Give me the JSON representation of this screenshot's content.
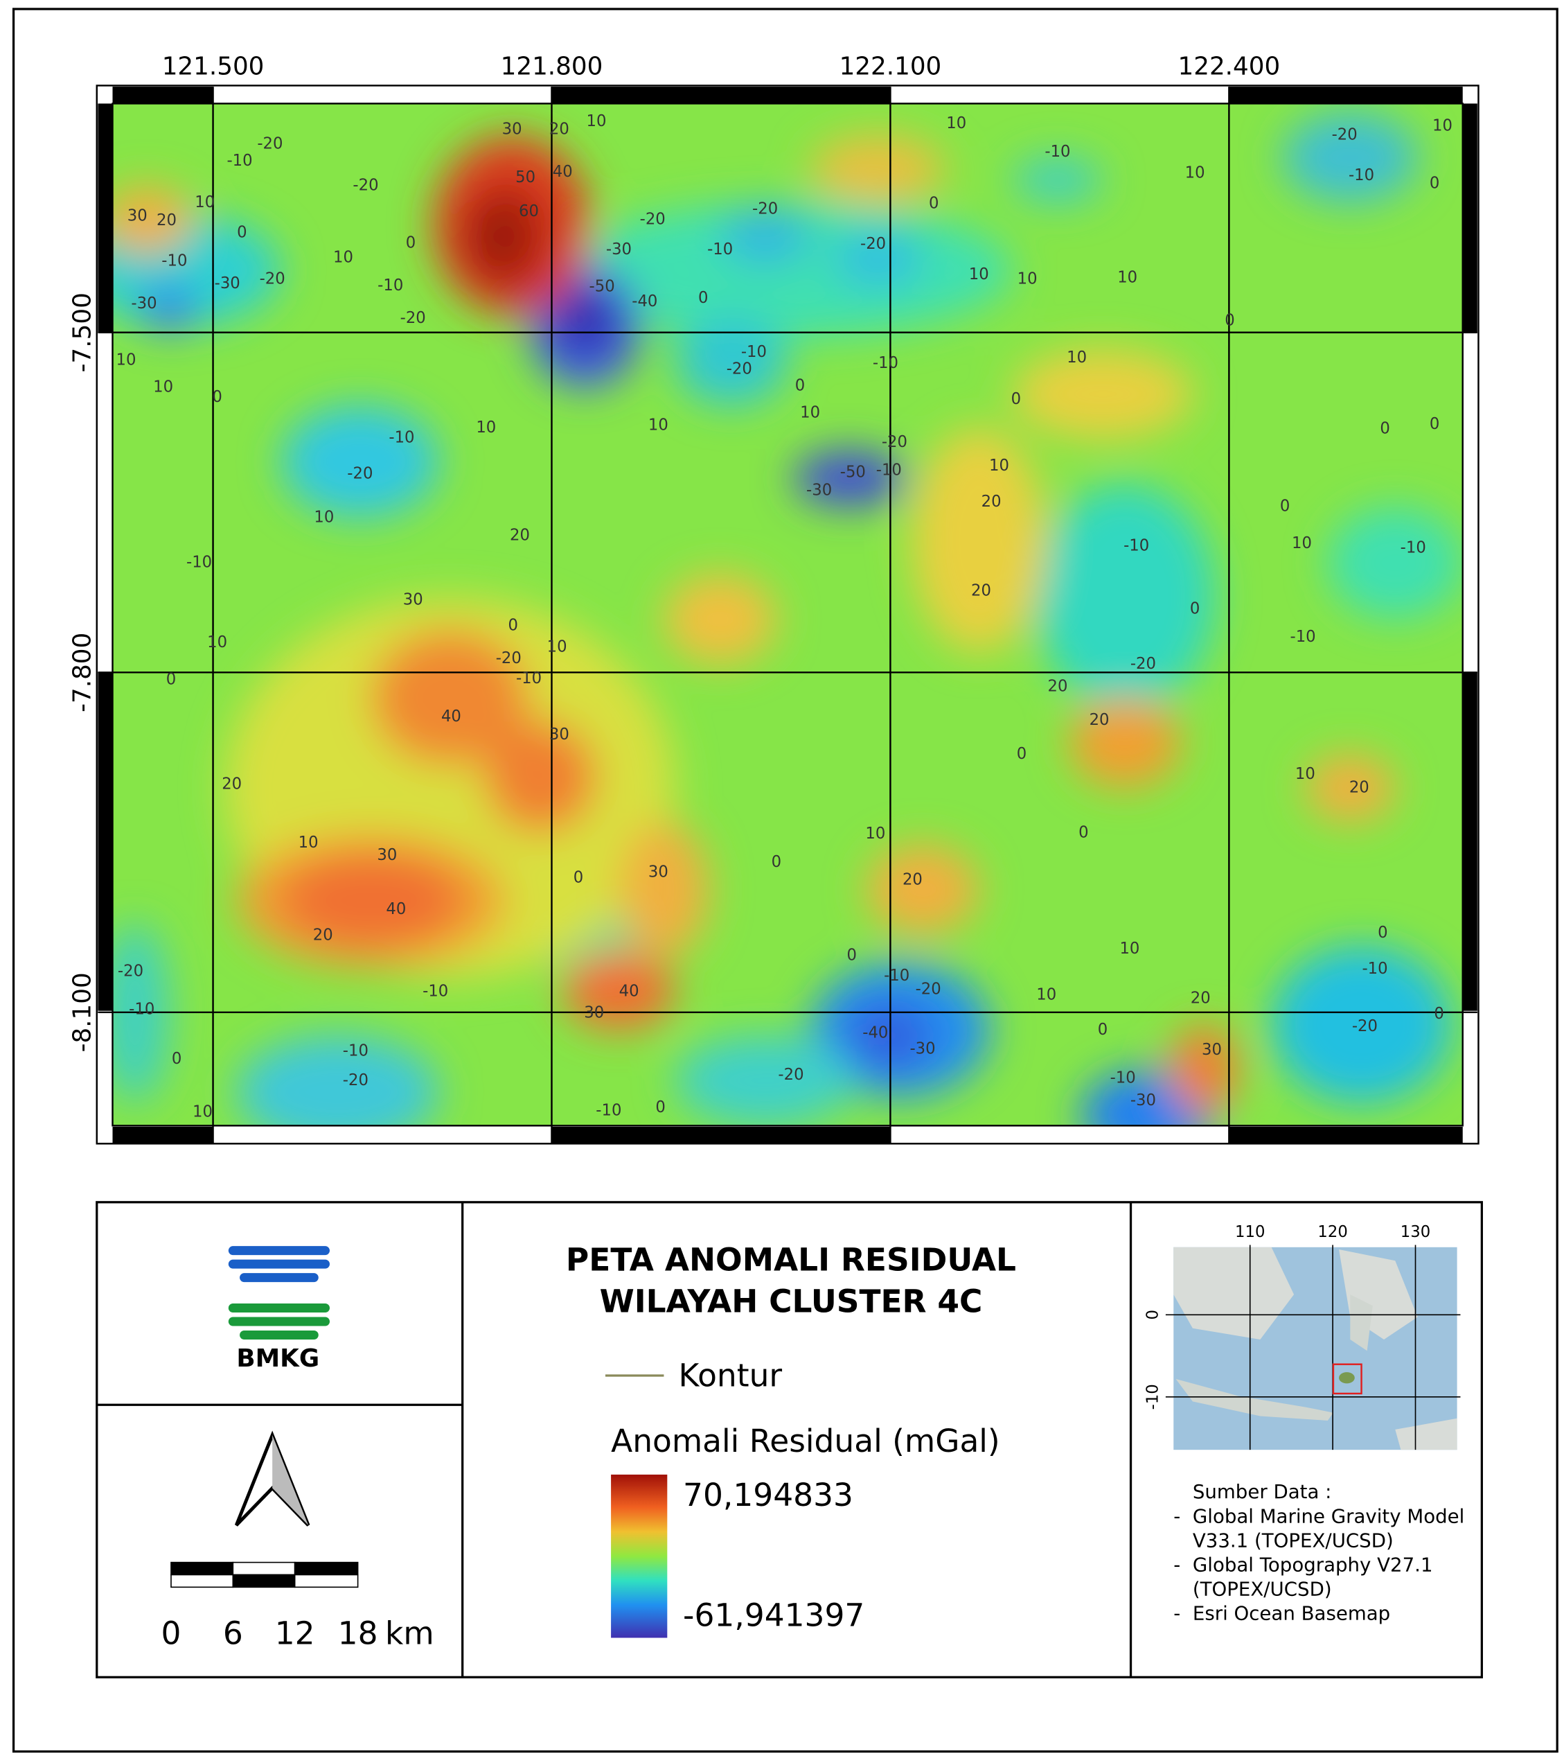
{
  "map": {
    "xlim": [
      121.411,
      122.607
    ],
    "ylim": [
      -7.298,
      -8.2
    ],
    "xticks": [
      {
        "value": 121.5,
        "label": "121.500"
      },
      {
        "value": 121.8,
        "label": "121.800"
      },
      {
        "value": 122.1,
        "label": "122.100"
      },
      {
        "value": 122.4,
        "label": "122.400"
      }
    ],
    "yticks": [
      {
        "value": -7.5,
        "label": "-7.500"
      },
      {
        "value": -7.8,
        "label": "-7.800"
      },
      {
        "value": -8.1,
        "label": "-8.100"
      }
    ],
    "contour_labels": [
      30,
      20,
      10,
      50,
      40,
      60,
      30,
      20,
      10,
      0,
      -20,
      -10,
      -20,
      0,
      10,
      -10,
      -30,
      -20,
      -30,
      -10,
      -20,
      -30,
      -20,
      -50,
      -40,
      0,
      -10,
      -20,
      -20,
      10,
      -10,
      10,
      -20,
      -10,
      10,
      0,
      0,
      10,
      10,
      10,
      0,
      10,
      10,
      0,
      -10,
      -20,
      0,
      10,
      10,
      -10,
      10,
      0,
      0,
      0,
      10,
      -10,
      -20,
      -20,
      -50,
      -30,
      -10,
      10,
      20,
      10,
      20,
      -10,
      0,
      10,
      -10,
      -10,
      20,
      30,
      0,
      0,
      10,
      -20,
      10,
      -10,
      -10,
      -20,
      0,
      20,
      40,
      20,
      30,
      0,
      10,
      20,
      20,
      10,
      10,
      0,
      30,
      0,
      30,
      0,
      20,
      40,
      20,
      0,
      10,
      -20,
      -10,
      -10,
      0,
      -10,
      -20,
      10,
      20,
      -10,
      0,
      -20,
      40,
      30,
      -40,
      -30,
      0,
      30,
      0,
      -10,
      -20,
      -20,
      -10,
      -30,
      10,
      -10,
      0
    ]
  },
  "title": [
    "PETA ANOMALI RESIDUAL",
    "WILAYAH CLUSTER 4C"
  ],
  "logo_text": "BMKG",
  "legend": {
    "contour": "Kontur",
    "title": "Anomali Residual (mGal)",
    "max": {
      "value": 70.194833,
      "label": "70,194833"
    },
    "min": {
      "value": -61.941397,
      "label": "-61,941397"
    }
  },
  "scale_bar": {
    "ticks": [
      0,
      6,
      12,
      18
    ],
    "unit": "km"
  },
  "inset": {
    "xticks": [
      110,
      120,
      130
    ],
    "yticks": [
      0,
      -10
    ]
  },
  "source": {
    "title": "Sumber Data :",
    "items": [
      [
        "Global Marine Gravity Model",
        "V33.1 (TOPEX/UCSD)"
      ],
      [
        "Global Topography V27.1",
        "(TOPEX/UCSD)"
      ],
      [
        "Esri Ocean Basemap"
      ]
    ]
  }
}
